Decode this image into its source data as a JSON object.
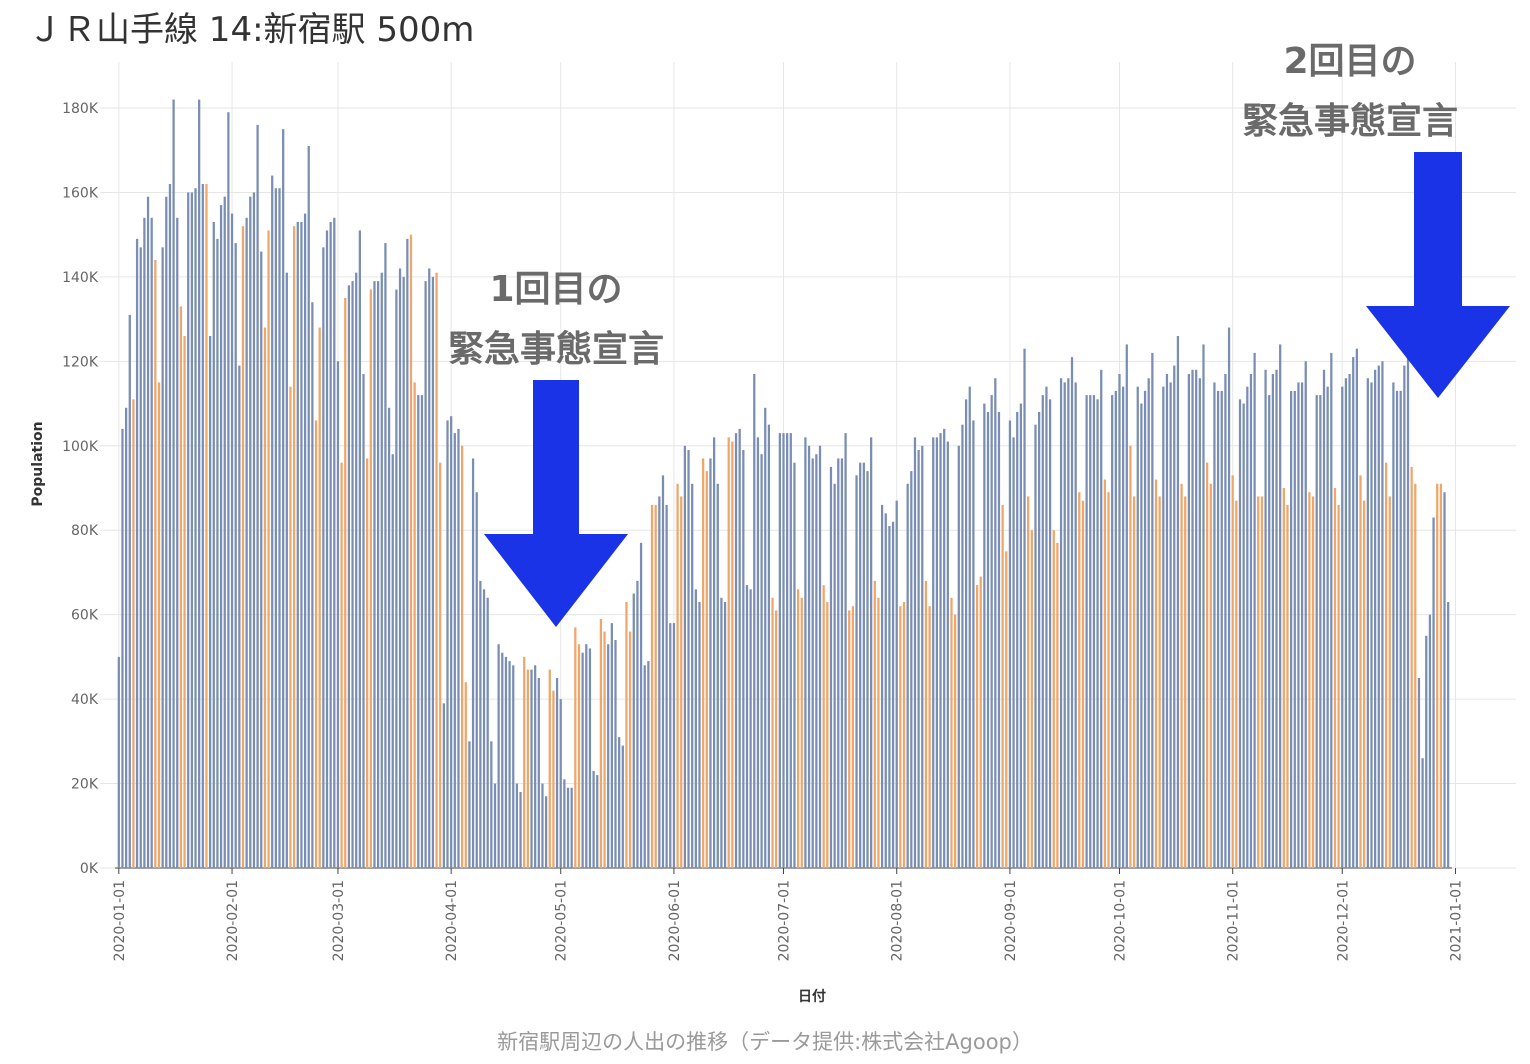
{
  "title": "ＪＲ山手線 14:新宿駅 500m",
  "caption": "新宿駅周辺の人出の推移（データ提供:株式会社Agoop）",
  "annotations": {
    "first": {
      "line1": "1回目の",
      "line2": "緊急事態宣言"
    },
    "second": {
      "line1": "2回目の",
      "line2": "緊急事態宣言"
    }
  },
  "colors": {
    "weekday": "#7a8eb3",
    "weekend": "#eea66a",
    "arrow": "#1a33e6",
    "grid": "#e6e6e6"
  },
  "chart_data": {
    "type": "bar",
    "title": "ＪＲ山手線 14:新宿駅 500m",
    "xlabel": "日付",
    "ylabel": "Population",
    "ylim": [
      0,
      190000
    ],
    "yticks": [
      0,
      20000,
      40000,
      60000,
      80000,
      100000,
      120000,
      140000,
      160000,
      180000
    ],
    "ytick_labels": [
      "0K",
      "20K",
      "40K",
      "60K",
      "80K",
      "100K",
      "120K",
      "140K",
      "160K",
      "180K"
    ],
    "xticks": [
      "2020-01-01",
      "2020-02-01",
      "2020-03-01",
      "2020-04-01",
      "2020-05-01",
      "2020-06-01",
      "2020-07-01",
      "2020-08-01",
      "2020-09-01",
      "2020-10-01",
      "2020-11-01",
      "2020-12-01",
      "2021-01-01"
    ],
    "grid": true,
    "x_start": "2020-01-01",
    "series_meaning": "one bar per day; weekend/holiday bars orange, weekday bars blue",
    "weekend_flags": "0000100000110000011000001000000000100000110000011000001100000110000011000000000011000001100000110000000000000001100000110000011000001100000110000011000001100000110000011000000000011000001100000110000011000001100000110000011000001100000110000011000001100000110000011000001100000110000011000001100000110000011000001100000110000011000001100000110000011000001100000110000011000001100000110000011000001100000110000011000001100000110000011000001100000110000011000001100000110000011000001100000110000011000001100000110000011",
    "values": [
      50000,
      104000,
      109000,
      131000,
      111000,
      149000,
      147000,
      154000,
      159000,
      154000,
      144000,
      115000,
      147000,
      159000,
      162000,
      182000,
      154000,
      133000,
      126000,
      160000,
      160000,
      161000,
      182000,
      162000,
      162000,
      126000,
      153000,
      149000,
      157000,
      159000,
      179000,
      155000,
      148000,
      119000,
      152000,
      154000,
      159000,
      160000,
      176000,
      146000,
      128000,
      151000,
      164000,
      161000,
      161000,
      175000,
      141000,
      114000,
      152000,
      153000,
      153000,
      155000,
      171000,
      134000,
      106000,
      128000,
      147000,
      151000,
      153000,
      154000,
      120000,
      96000,
      135000,
      138000,
      139000,
      141000,
      151000,
      117000,
      97000,
      137000,
      139000,
      139000,
      141000,
      148000,
      109000,
      98000,
      137000,
      142000,
      140000,
      149000,
      150000,
      115000,
      112000,
      112000,
      139000,
      142000,
      140000,
      141000,
      96000,
      39000,
      106000,
      107000,
      103000,
      104000,
      100000,
      44000,
      30000,
      97000,
      89000,
      68000,
      66000,
      64000,
      30000,
      20000,
      53000,
      51000,
      50000,
      49000,
      48000,
      20000,
      18000,
      50000,
      47000,
      47000,
      48000,
      45000,
      20000,
      17000,
      47000,
      42000,
      45000,
      40000,
      21000,
      19000,
      19000,
      57000,
      53000,
      51000,
      53000,
      52000,
      23000,
      22000,
      59000,
      56000,
      53000,
      58000,
      54000,
      31000,
      29000,
      63000,
      56000,
      65000,
      68000,
      77000,
      48000,
      49000,
      86000,
      86000,
      88000,
      93000,
      86000,
      58000,
      58000,
      91000,
      88000,
      100000,
      99000,
      91000,
      66000,
      63000,
      97000,
      94000,
      97000,
      102000,
      91000,
      64000,
      63000,
      102000,
      101000,
      103000,
      104000,
      99000,
      67000,
      66000,
      117000,
      102000,
      98000,
      109000,
      105000,
      64000,
      61000,
      103000,
      103000,
      103000,
      103000,
      96000,
      66000,
      64000,
      102000,
      100000,
      97000,
      98000,
      100000,
      67000,
      63000,
      95000,
      91000,
      97000,
      97000,
      103000,
      61000,
      62000,
      93000,
      96000,
      96000,
      94000,
      102000,
      68000,
      64000,
      86000,
      84000,
      81000,
      82000,
      87000,
      62000,
      63000,
      91000,
      94000,
      102000,
      99000,
      100000,
      68000,
      62000,
      102000,
      102000,
      103000,
      104000,
      101000,
      64000,
      60000,
      100000,
      105000,
      111000,
      114000,
      106000,
      67000,
      69000,
      110000,
      108000,
      112000,
      116000,
      108000,
      86000,
      75000,
      106000,
      102000,
      108000,
      110000,
      123000,
      88000,
      80000,
      105000,
      108000,
      112000,
      114000,
      111000,
      80000,
      77000,
      116000,
      115000,
      116000,
      121000,
      115000,
      89000,
      87000,
      112000,
      112000,
      112000,
      111000,
      118000,
      92000,
      89000,
      112000,
      113000,
      117000,
      114000,
      124000,
      100000,
      88000,
      114000,
      110000,
      113000,
      116000,
      122000,
      92000,
      88000,
      114000,
      117000,
      115000,
      119000,
      126000,
      91000,
      88000,
      117000,
      118000,
      118000,
      116000,
      124000,
      96000,
      91000,
      115000,
      113000,
      113000,
      117000,
      128000,
      93000,
      87000,
      111000,
      110000,
      114000,
      117000,
      122000,
      88000,
      88000,
      118000,
      112000,
      117000,
      118000,
      124000,
      90000,
      86000,
      113000,
      113000,
      115000,
      115000,
      120000,
      89000,
      88000,
      112000,
      112000,
      118000,
      114000,
      122000,
      90000,
      86000,
      114000,
      116000,
      117000,
      121000,
      123000,
      93000,
      87000,
      116000,
      115000,
      118000,
      119000,
      120000,
      96000,
      88000,
      115000,
      113000,
      113000,
      119000,
      122000,
      95000,
      91000,
      45000,
      26000,
      55000,
      60000,
      83000,
      91000,
      91000,
      89000,
      63000
    ]
  }
}
